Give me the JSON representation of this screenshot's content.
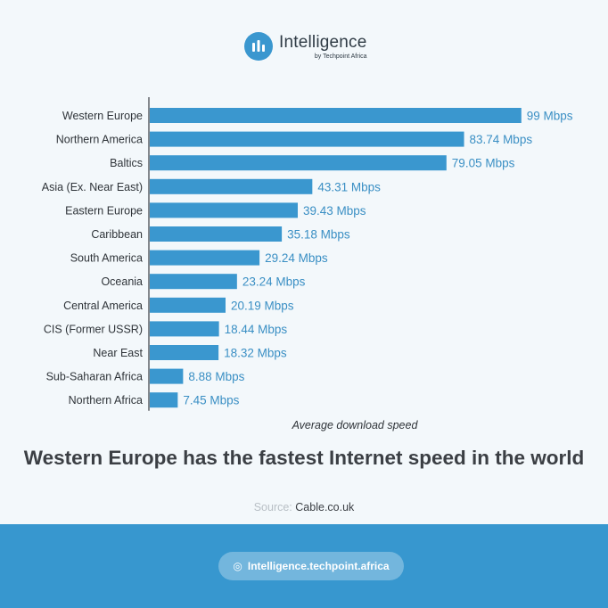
{
  "brand": {
    "name": "Intelligence",
    "sub": "by Techpoint Africa",
    "icon": "bar-chart-icon"
  },
  "chart_data": {
    "type": "bar",
    "orientation": "horizontal",
    "categories": [
      "Western Europe",
      "Northern America",
      "Baltics",
      "Asia (Ex. Near East)",
      "Eastern Europe",
      "Caribbean",
      "South America",
      "Oceania",
      "Central America",
      "CIS (Former USSR)",
      "Near East",
      "Sub-Saharan Africa",
      "Northern Africa"
    ],
    "values": [
      99,
      83.74,
      79.05,
      43.31,
      39.43,
      35.18,
      29.24,
      23.24,
      20.19,
      18.44,
      18.32,
      8.88,
      7.45
    ],
    "data_labels": [
      "99 Mbps",
      "83.74 Mbps",
      "79.05 Mbps",
      "43.31 Mbps",
      "39.43 Mbps",
      "35.18 Mbps",
      "29.24 Mbps",
      "23.24 Mbps",
      "20.19 Mbps",
      "18.44 Mbps",
      "18.32 Mbps",
      "8.88 Mbps",
      "7.45 Mbps"
    ],
    "xlabel": "Average download speed",
    "xlim": [
      0,
      100
    ],
    "grid": false,
    "legend": "none",
    "bar_color": "#3a97cf",
    "label_color": "#3a8fc4"
  },
  "headline": "Western Europe has the fastest Internet speed in the world",
  "source": {
    "label": "Source:",
    "value": "Cable.co.uk"
  },
  "footer": {
    "icon": "globe-icon",
    "link": "Intelligence.techpoint.africa"
  }
}
